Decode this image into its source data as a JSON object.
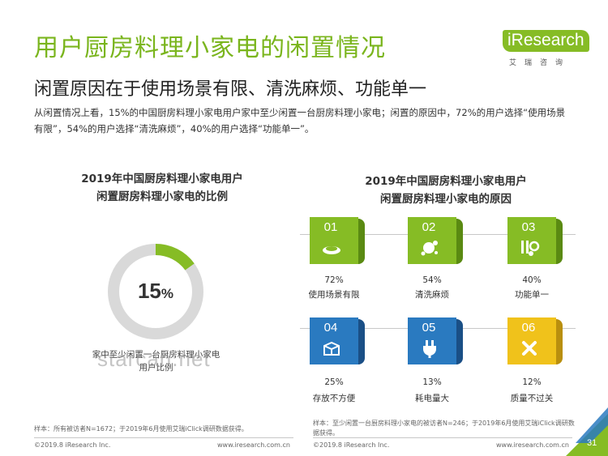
{
  "title": "用户厨房料理小家电的闲置情况",
  "subtitle": "闲置原因在于使用场景有限、清洗麻烦、功能单一",
  "description": "从闲置情况上看，15%的中国厨房料理小家电用户家中至少闲置一台厨房料理小家电；闲置的原因中，72%的用户选择“使用场景有限”，54%的用户选择“清洗麻烦”，40%的用户选择“功能单一”。",
  "logo": {
    "brand": "iResearch",
    "cn": "艾瑞咨询"
  },
  "watermark": "starcan.net",
  "colors": {
    "green": "#86bc25",
    "dark_green": "#5a8a12",
    "blue": "#2a7ac0",
    "dark_blue": "#1a4f86",
    "yellow": "#f0c21b",
    "dark_yellow": "#b98f0e",
    "grey": "#d9d9d9"
  },
  "chart_data": [
    {
      "type": "pie",
      "title": "2019年中国厨房料理小家电用户 闲置厨房料理小家电的比例",
      "title_lines": [
        "2019年中国厨房料理小家电用户",
        "闲置厨房料理小家电的比例"
      ],
      "values": [
        15,
        85
      ],
      "highlight_value": {
        "num": "15",
        "unit": "%"
      },
      "categories": [
        "家中至少闲置一台厨房料理小家电的用户比例",
        ""
      ],
      "caption": "家中至少闲置一台厨房料理小家电用户比例"
    },
    {
      "type": "table",
      "title": "2019年中国厨房料理小家电用户 闲置厨房料理小家电的原因",
      "title_lines": [
        "2019年中国厨房料理小家电用户",
        "闲置厨房料理小家电的原因"
      ],
      "items": [
        {
          "num": "01",
          "value": 72,
          "pct": "72%",
          "label": "使用场景有限",
          "icon": "plate-icon",
          "color": "green"
        },
        {
          "num": "02",
          "value": 54,
          "pct": "54%",
          "label": "清洗麻烦",
          "icon": "splash-icon",
          "color": "green"
        },
        {
          "num": "03",
          "value": 40,
          "pct": "40%",
          "label": "功能单一",
          "icon": "tools-icon",
          "color": "green"
        },
        {
          "num": "04",
          "value": 25,
          "pct": "25%",
          "label": "存放不方便",
          "icon": "box-icon",
          "color": "blue"
        },
        {
          "num": "05",
          "value": 13,
          "pct": "13%",
          "label": "耗电量大",
          "icon": "plug-icon",
          "color": "blue"
        },
        {
          "num": "06",
          "value": 12,
          "pct": "12%",
          "label": "质量不过关",
          "icon": "broken-icon",
          "color": "yellow"
        }
      ]
    }
  ],
  "notes": {
    "left": "样本：所有被访者N=1672；于2019年6月使用艾瑞iClick调研数据获得。",
    "right": "样本：至少闲置一台厨房料理小家电的被访者N=246；于2019年6月使用艾瑞iClick调研数据获得。"
  },
  "footer": {
    "left_copyright": "©2019.8 iResearch Inc.",
    "left_url": "www.iresearch.com.cn",
    "right_copyright": "©2019.8 iResearch Inc.",
    "right_url": "www.iresearch.com.cn",
    "page": "31"
  }
}
